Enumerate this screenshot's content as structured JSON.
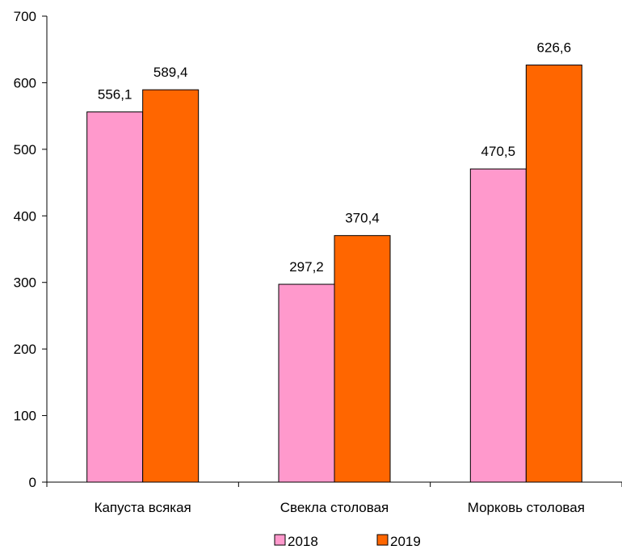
{
  "chart_data": {
    "type": "bar",
    "categories": [
      "Капуста всякая",
      "Свекла столовая",
      "Морковь столовая"
    ],
    "series": [
      {
        "name": "2018",
        "values": [
          556.1,
          297.2,
          470.5
        ],
        "labels": [
          "556,1",
          "297,2",
          "470,5"
        ],
        "color": "#FF99CC"
      },
      {
        "name": "2019",
        "values": [
          589.4,
          370.4,
          626.6
        ],
        "labels": [
          "589,4",
          "370,4",
          "626,6"
        ],
        "color": "#FF6600"
      }
    ],
    "yticks": [
      "0",
      "100",
      "200",
      "300",
      "400",
      "500",
      "600",
      "700"
    ],
    "ylim": [
      0,
      700
    ],
    "grid": false,
    "legend_position": "bottom"
  }
}
